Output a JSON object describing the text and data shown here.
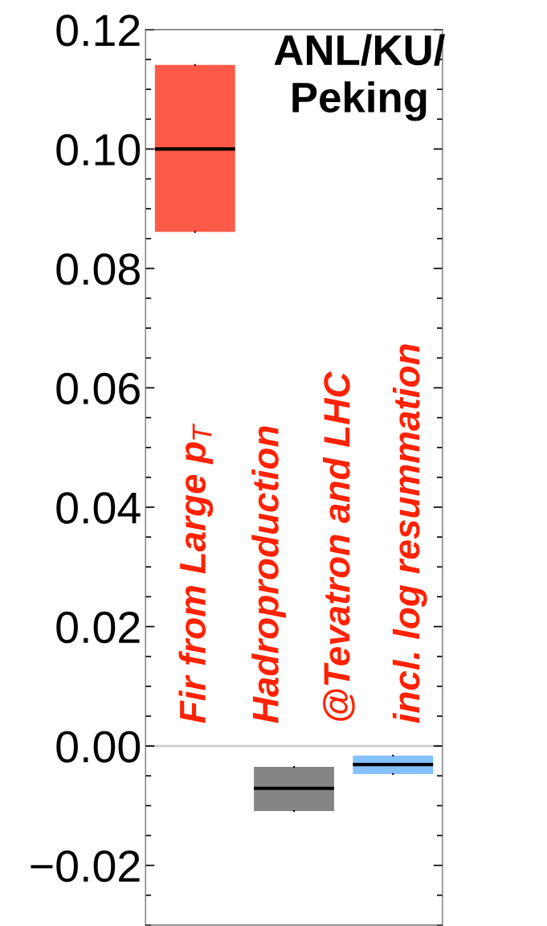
{
  "chart_data": {
    "type": "box",
    "title": "ANL/KU/\nPeking",
    "categories": [
      null,
      null,
      null
    ],
    "boxes": [
      {
        "q1": 0.0861,
        "median": 0.1,
        "q3": 0.1141
      },
      {
        "q1": -0.0109,
        "median": -0.0071,
        "q3": -0.0035
      },
      {
        "q1": -0.0047,
        "median": -0.0031,
        "q3": -0.0016
      }
    ],
    "colors": [
      "#ff5a48",
      "#858585",
      "#85c1ff"
    ],
    "ylim": [
      -0.03,
      0.12
    ],
    "yticks": [
      {
        "value": -0.02,
        "label": "−0.02"
      },
      "0.00",
      0.02,
      0.04,
      0.06,
      0.08,
      "0.10",
      0.12
    ],
    "tick_labels": "y",
    "grid": false,
    "ref_lines": [
      {
        "axis": "y",
        "value": 0,
        "color": "#cccccc"
      }
    ],
    "annotations": [
      "Fir from Large p$_{T}$",
      "Hadroproduction",
      "@Tevatron and LHC",
      "incl. log resummation"
    ]
  }
}
